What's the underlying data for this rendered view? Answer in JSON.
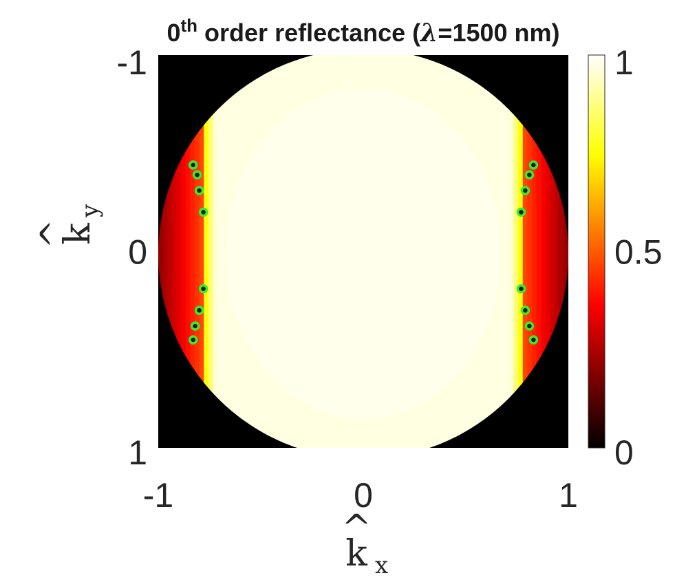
{
  "chart_data": {
    "type": "heatmap",
    "title": {
      "prefix": "0",
      "superscript": "th",
      "text": " order reflectance (",
      "lambda": "λ",
      "suffix": "=1500 nm)"
    },
    "xlabel": {
      "base": "k",
      "hat": "^",
      "sub": "x"
    },
    "ylabel": {
      "base": "k",
      "hat": "^",
      "sub": "y"
    },
    "xlim": [
      -1,
      1
    ],
    "ylim": [
      -1,
      1
    ],
    "y_direction": "reversed",
    "x_ticks": [
      {
        "value": -1,
        "label": "-1"
      },
      {
        "value": 0,
        "label": "0"
      },
      {
        "value": 1,
        "label": "1"
      }
    ],
    "y_ticks": [
      {
        "value": -1,
        "label": "-1"
      },
      {
        "value": 0,
        "label": "0"
      },
      {
        "value": 1,
        "label": "1"
      }
    ],
    "colorbar": {
      "colormap": "hot",
      "clim": [
        0,
        1
      ],
      "ticks": [
        {
          "value": 0,
          "label": "0"
        },
        {
          "value": 0.5,
          "label": "0.5"
        },
        {
          "value": 1,
          "label": "1"
        }
      ]
    },
    "field": {
      "outside_unit_circle": 0,
      "central_band_value": 0.97,
      "central_band_edge_kx": 0.78,
      "edge_band_value_min": 0.2,
      "edge_band_value_max": 0.48,
      "background": "#000000"
    },
    "markers": {
      "color": "#33ee33",
      "center_color": "#1a1a1a",
      "points": [
        {
          "kx": -0.83,
          "ky": -0.44
        },
        {
          "kx": -0.81,
          "ky": -0.39
        },
        {
          "kx": -0.8,
          "ky": -0.31
        },
        {
          "kx": -0.78,
          "ky": -0.2
        },
        {
          "kx": -0.78,
          "ky": 0.19
        },
        {
          "kx": -0.8,
          "ky": 0.3
        },
        {
          "kx": -0.82,
          "ky": 0.38
        },
        {
          "kx": -0.83,
          "ky": 0.45
        },
        {
          "kx": 0.83,
          "ky": -0.44
        },
        {
          "kx": 0.81,
          "ky": -0.39
        },
        {
          "kx": 0.79,
          "ky": -0.31
        },
        {
          "kx": 0.77,
          "ky": -0.2
        },
        {
          "kx": 0.77,
          "ky": 0.19
        },
        {
          "kx": 0.79,
          "ky": 0.3
        },
        {
          "kx": 0.81,
          "ky": 0.38
        },
        {
          "kx": 0.83,
          "ky": 0.45
        }
      ]
    }
  }
}
